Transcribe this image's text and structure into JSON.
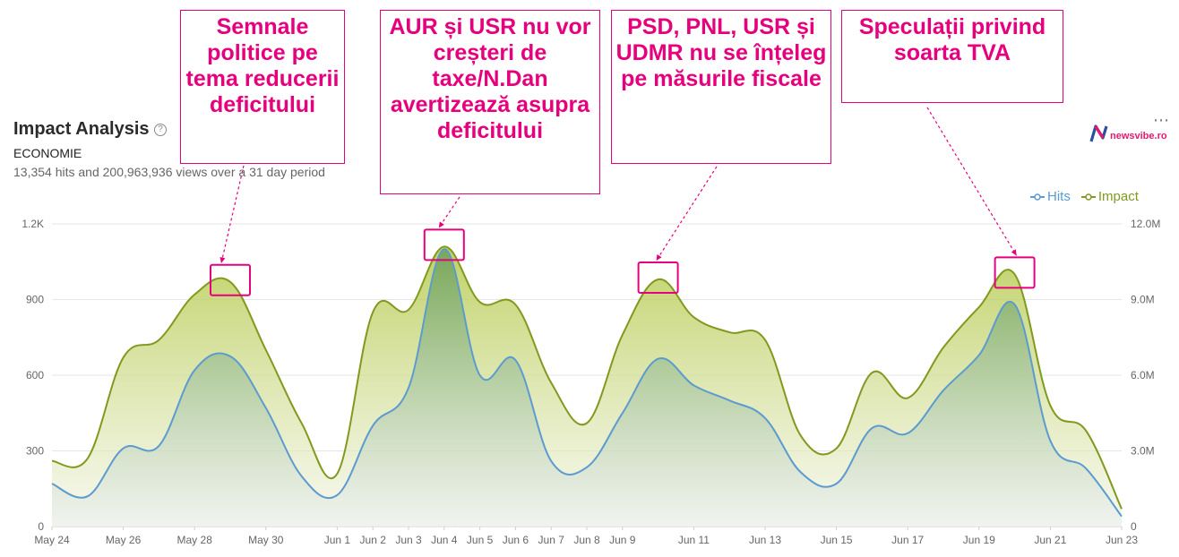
{
  "header": {
    "title": "Impact Analysis",
    "subtitle": "ECONOMIE",
    "summary": "13,354 hits and 200,963,936 views over a 31 day period",
    "logo_text": "newsvibe.ro"
  },
  "colors": {
    "hits": "#5b9bd0",
    "impact": "#7f9a1e",
    "annotation": "#e6007e"
  },
  "icons": [
    "help-icon",
    "more-icon",
    "newsvibe-logo-icon"
  ],
  "annotations": [
    {
      "text": "Semnale politice pe tema reducerii deficitului"
    },
    {
      "text": "AUR și USR nu vor creșteri de taxe/N.Dan avertizează asupra deficitului"
    },
    {
      "text": "PSD, PNL, USR și UDMR nu se înțeleg pe măsurile fiscale"
    },
    {
      "text": "Speculații privind soarta TVA"
    }
  ],
  "chart_data": {
    "type": "area",
    "title": "Impact Analysis",
    "legend": "top-right",
    "grid": true,
    "x_start": "May 24",
    "x_end": "Jun 23",
    "x_ticks": [
      "May 24",
      "May 26",
      "May 28",
      "May 30",
      "Jun 1",
      "Jun 2",
      "Jun 3",
      "Jun 4",
      "Jun 5",
      "Jun 6",
      "Jun 7",
      "Jun 8",
      "Jun 9",
      "Jun 11",
      "Jun 13",
      "Jun 15",
      "Jun 17",
      "Jun 19",
      "Jun 21",
      "Jun 23"
    ],
    "x_tick_pos": [
      0,
      2,
      4,
      6,
      8,
      9,
      10,
      11,
      12,
      13,
      14,
      15,
      16,
      18,
      20,
      22,
      24,
      26,
      28,
      30
    ],
    "y_left": {
      "ticks": [
        "0",
        "300",
        "600",
        "900",
        "1.2K"
      ],
      "range": [
        0,
        1200
      ]
    },
    "y_right": {
      "ticks": [
        "0",
        "3.0M",
        "6.0M",
        "9.0M",
        "12.0M"
      ],
      "range": [
        0,
        12000000
      ]
    },
    "series": [
      {
        "name": "Hits",
        "axis": "left",
        "values": [
          170,
          120,
          310,
          320,
          620,
          675,
          470,
          200,
          125,
          400,
          550,
          1100,
          600,
          660,
          260,
          235,
          450,
          665,
          560,
          500,
          430,
          215,
          170,
          390,
          370,
          540,
          680,
          880,
          340,
          230,
          40
        ]
      },
      {
        "name": "Impact",
        "axis": "right",
        "values": [
          2600000,
          2700000,
          6700000,
          7400000,
          9200000,
          9700000,
          7000000,
          4100000,
          2100000,
          8500000,
          8600000,
          11100000,
          8900000,
          8800000,
          5700000,
          4100000,
          7600000,
          9800000,
          8300000,
          7700000,
          7400000,
          3600000,
          3100000,
          6100000,
          5100000,
          7100000,
          8700000,
          10000000,
          4800000,
          3800000,
          700000
        ]
      }
    ],
    "highlight_boxes_x": [
      5,
      11,
      17,
      27
    ]
  }
}
